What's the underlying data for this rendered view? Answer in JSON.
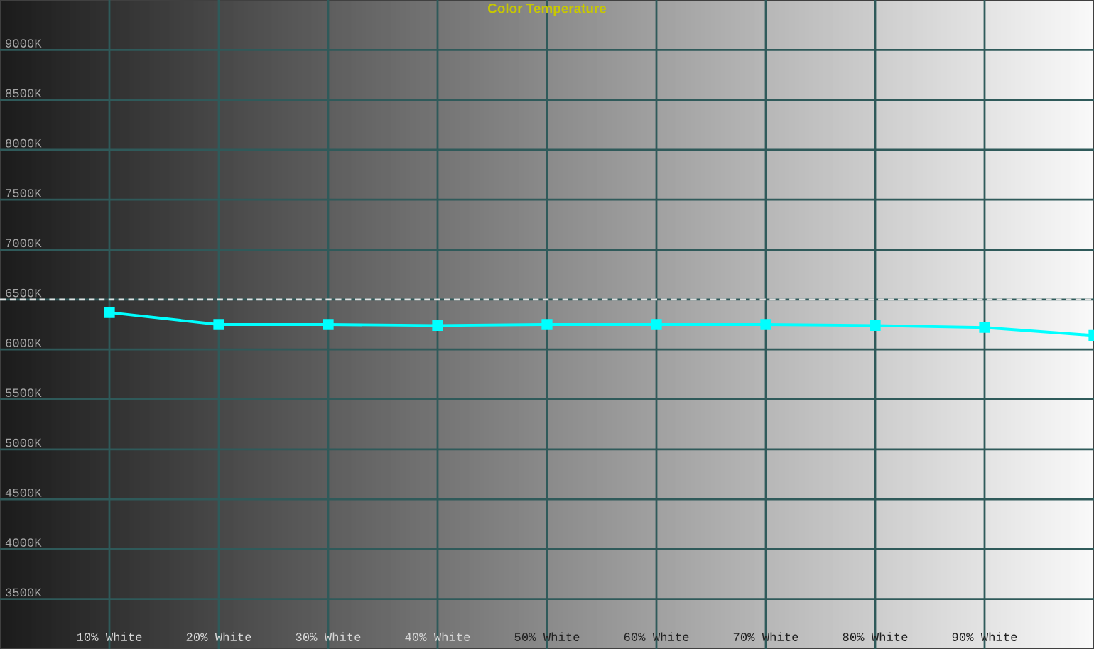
{
  "chart_data": {
    "type": "line",
    "title": "Color Temperature",
    "x": [
      10,
      20,
      30,
      40,
      50,
      60,
      70,
      80,
      90,
      100
    ],
    "series": [
      {
        "color": "#00ffff",
        "values": [
          6370,
          6250,
          6250,
          6240,
          6250,
          6250,
          6250,
          6240,
          6220,
          6140
        ]
      }
    ],
    "xlim": [
      0,
      100
    ],
    "xticks": [
      {
        "value": 10,
        "label": "10% White"
      },
      {
        "value": 20,
        "label": "20% White"
      },
      {
        "value": 30,
        "label": "30% White"
      },
      {
        "value": 40,
        "label": "40% White"
      },
      {
        "value": 50,
        "label": "50% White"
      },
      {
        "value": 60,
        "label": "60% White"
      },
      {
        "value": 70,
        "label": "70% White"
      },
      {
        "value": 80,
        "label": "80% White"
      },
      {
        "value": 90,
        "label": "90% White"
      }
    ],
    "ylim": [
      3000,
      9500
    ],
    "yticks": [
      {
        "value": 3500,
        "label": "3500K"
      },
      {
        "value": 4000,
        "label": "4000K"
      },
      {
        "value": 4500,
        "label": "4500K"
      },
      {
        "value": 5000,
        "label": "5000K"
      },
      {
        "value": 5500,
        "label": "5500K"
      },
      {
        "value": 6000,
        "label": "6000K"
      },
      {
        "value": 6500,
        "label": "6500K"
      },
      {
        "value": 7000,
        "label": "7000K"
      },
      {
        "value": 7500,
        "label": "7500K"
      },
      {
        "value": 8000,
        "label": "8000K"
      },
      {
        "value": 8500,
        "label": "8500K"
      },
      {
        "value": 9000,
        "label": "9000K"
      }
    ],
    "ref_lines": [
      {
        "axis": "y",
        "value": 6500,
        "color": "#e0e0e0",
        "line_style": "dashed"
      }
    ],
    "grid": true,
    "marker": "square",
    "line_style": "solid"
  }
}
